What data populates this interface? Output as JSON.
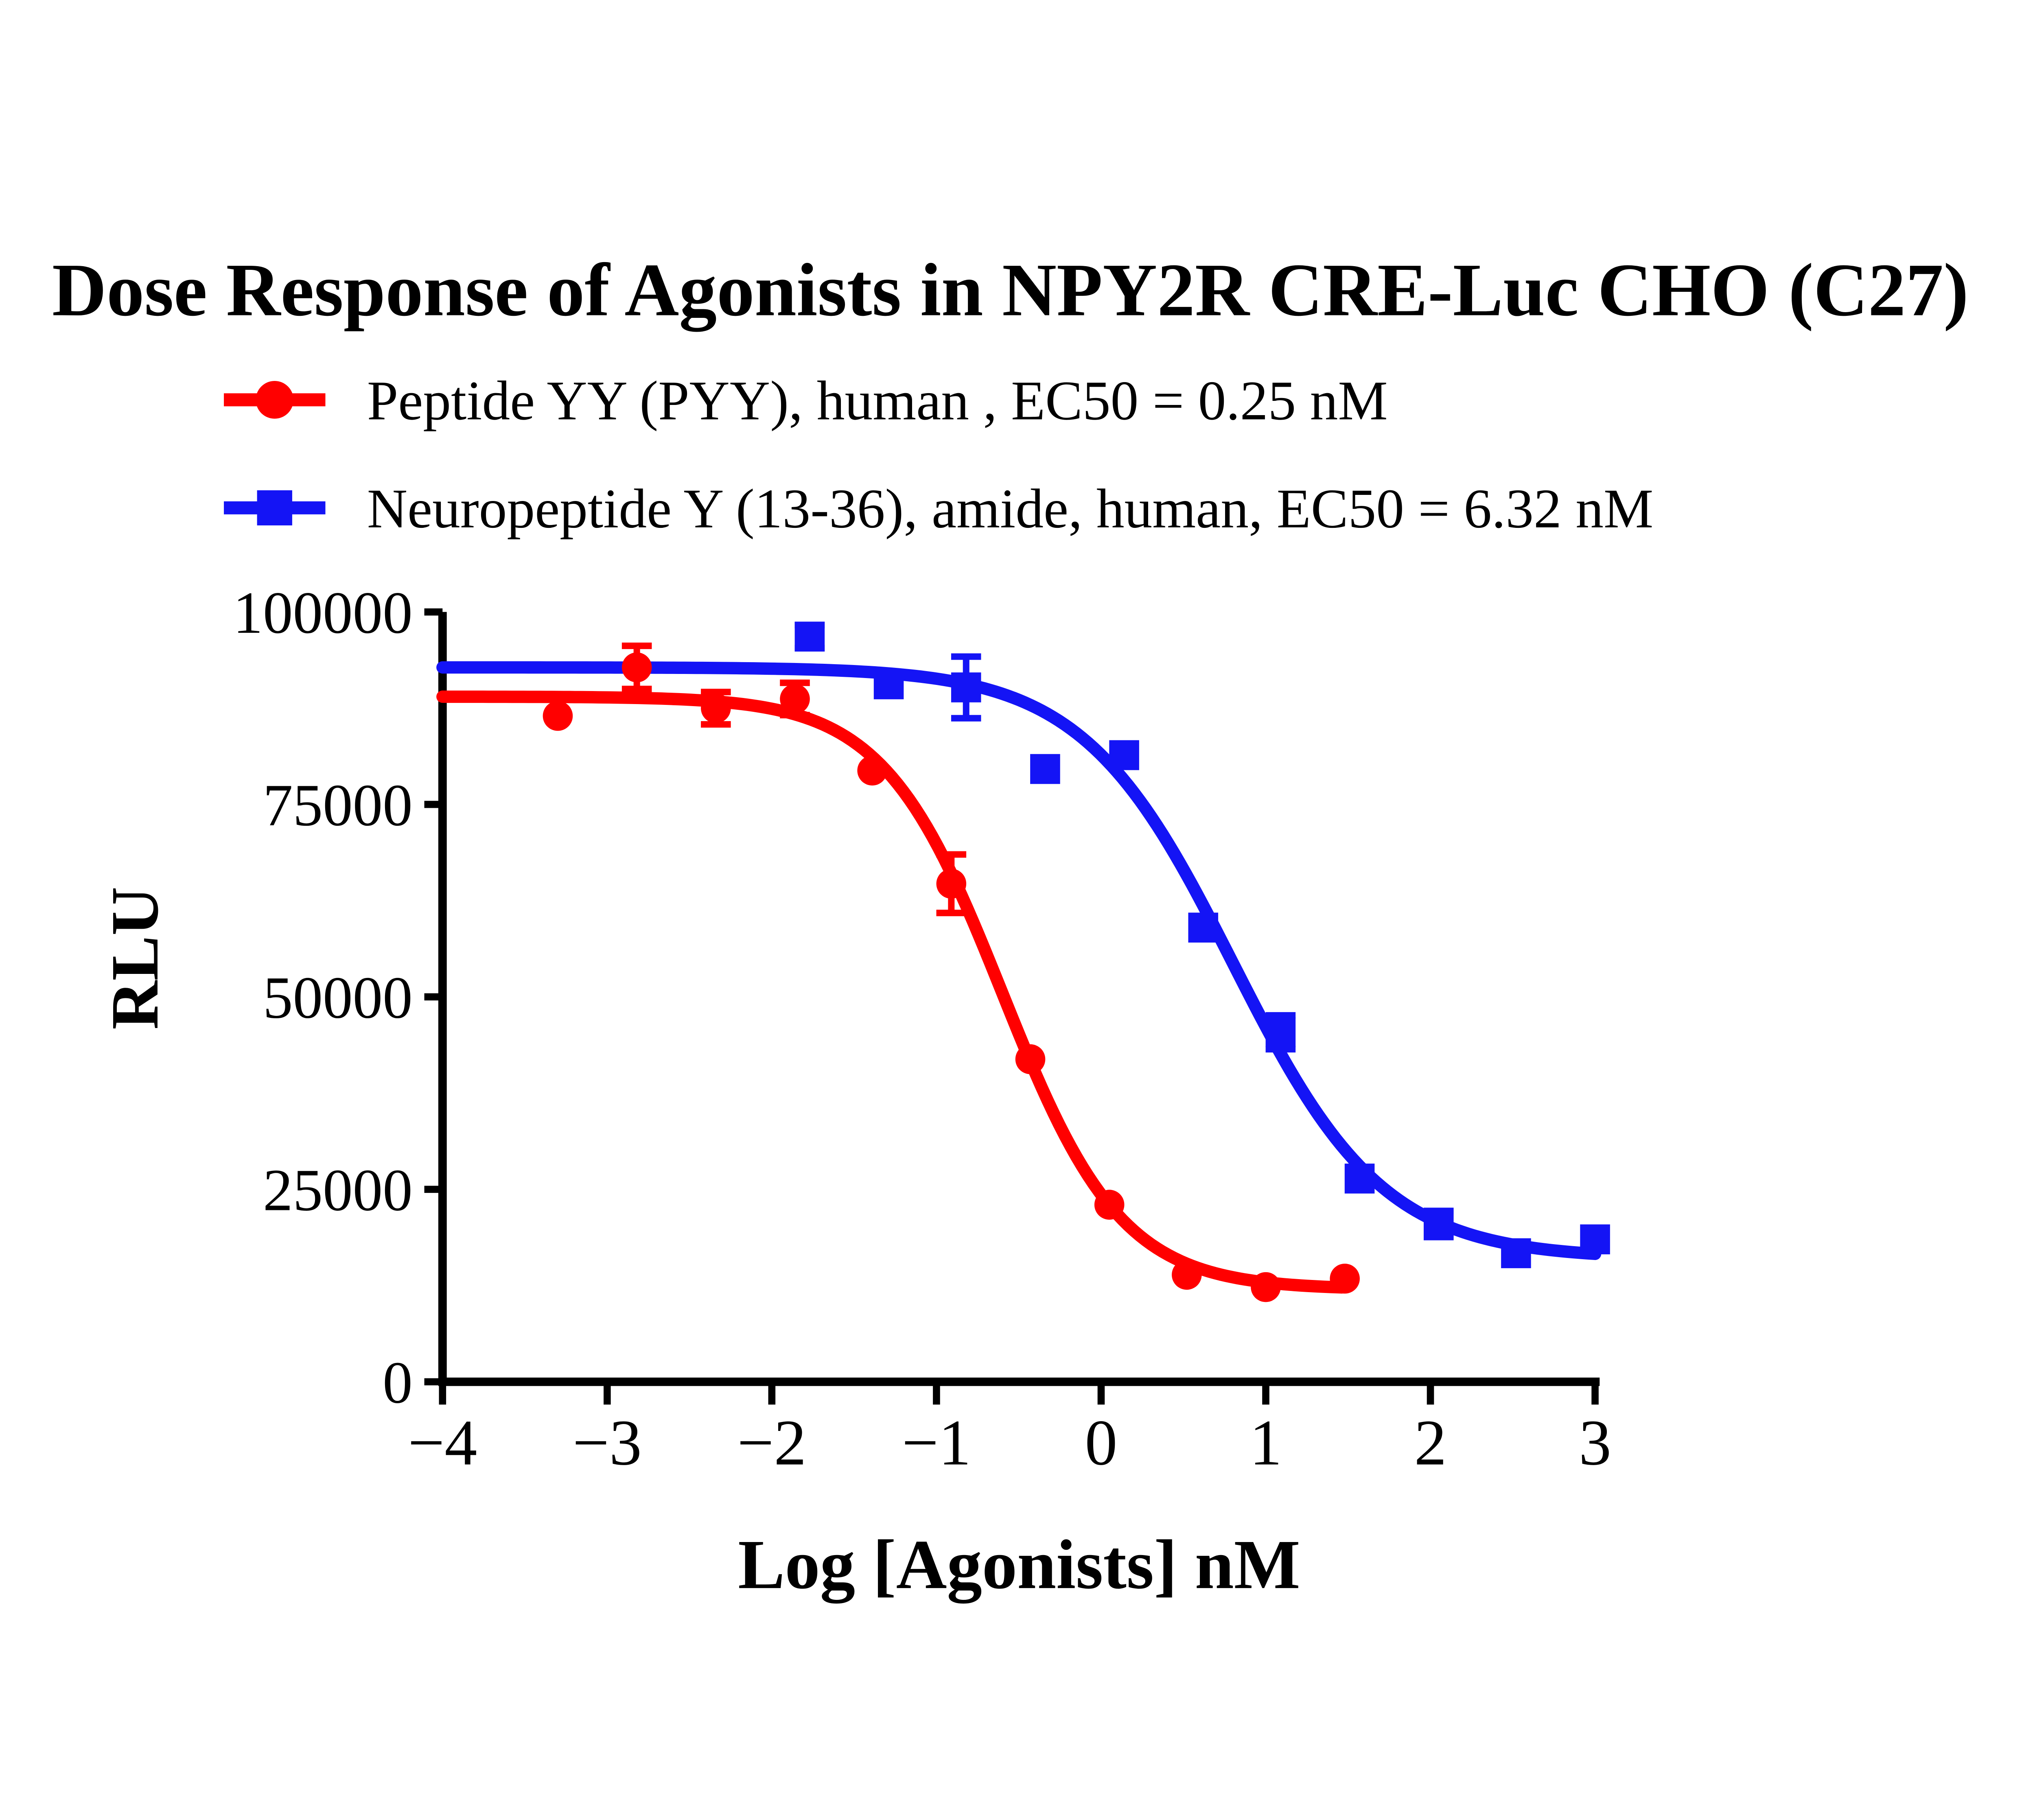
{
  "page": {
    "background": "#FFFFFF"
  },
  "chart_data": {
    "type": "scatter",
    "subtype": "dose-response-4PL",
    "title": "Dose Response of Agonists in NPY2R CRE-Luc CHO (C27)",
    "xlabel": "Log [Agonists] nM",
    "ylabel": "RLU",
    "xlim": [
      -4,
      3
    ],
    "ylim": [
      0,
      100000
    ],
    "grid": false,
    "legend_position": "top-left",
    "axis_color": "#000000",
    "xticks": [
      {
        "value": -4,
        "label": "−4"
      },
      {
        "value": -3,
        "label": "−3"
      },
      {
        "value": -2,
        "label": "−2"
      },
      {
        "value": -1,
        "label": "−1"
      },
      {
        "value": 0,
        "label": "0"
      },
      {
        "value": 1,
        "label": "1"
      },
      {
        "value": 2,
        "label": "2"
      },
      {
        "value": 3,
        "label": "3"
      }
    ],
    "yticks": [
      {
        "value": 0,
        "label": "0"
      },
      {
        "value": 25000,
        "label": "25000"
      },
      {
        "value": 50000,
        "label": "50000"
      },
      {
        "value": 75000,
        "label": "75000"
      },
      {
        "value": 100000,
        "label": "100000"
      }
    ],
    "series": [
      {
        "id": "pyy",
        "name": "Peptide YY (PYY), human",
        "legend_label": "Peptide YY (PYY), human , EC50 = 0.25 nM",
        "ec50_nM": 0.25,
        "color": "#FF0000",
        "marker": "circle",
        "fit": {
          "model": "sigmoid-4PL",
          "top": 89000,
          "bottom": 12000,
          "logEC50": -0.6,
          "hill": 1.2,
          "x_start": -4,
          "x_end": 1.48
        },
        "points": [
          {
            "x": -3.3,
            "y": 86500
          },
          {
            "x": -2.82,
            "y": 92800,
            "err": 2800
          },
          {
            "x": -2.34,
            "y": 87500,
            "err": 2100
          },
          {
            "x": -1.86,
            "y": 88700,
            "err": 2100
          },
          {
            "x": -1.39,
            "y": 79400
          },
          {
            "x": -0.91,
            "y": 64700,
            "err": 3800
          },
          {
            "x": -0.43,
            "y": 41900
          },
          {
            "x": 0.05,
            "y": 23000
          },
          {
            "x": 0.52,
            "y": 13900
          },
          {
            "x": 1.0,
            "y": 12300
          },
          {
            "x": 1.48,
            "y": 13400
          }
        ]
      },
      {
        "id": "npy",
        "name": "Neuropeptide Y (13-36), amide, human",
        "legend_label": "Neuropeptide Y (13-36), amide, human, EC50 = 6.32 nM",
        "ec50_nM": 6.32,
        "color": "#1414F5",
        "marker": "square",
        "fit": {
          "model": "sigmoid-4PL",
          "top": 92800,
          "bottom": 16000,
          "logEC50": 0.8,
          "hill": 0.95,
          "x_start": -4,
          "x_end": 3.0
        },
        "points": [
          {
            "x": -1.77,
            "y": 96800,
            "err": 1500
          },
          {
            "x": -1.29,
            "y": 90600
          },
          {
            "x": -0.82,
            "y": 90200,
            "err": 4000
          },
          {
            "x": -0.34,
            "y": 79600
          },
          {
            "x": 0.14,
            "y": 81400
          },
          {
            "x": 0.62,
            "y": 59000
          },
          {
            "x": 1.09,
            "y": 45400,
            "err": 2200
          },
          {
            "x": 1.57,
            "y": 26400
          },
          {
            "x": 2.05,
            "y": 20500,
            "err": 1700
          },
          {
            "x": 2.52,
            "y": 16700
          },
          {
            "x": 3.0,
            "y": 18500
          }
        ]
      }
    ]
  }
}
